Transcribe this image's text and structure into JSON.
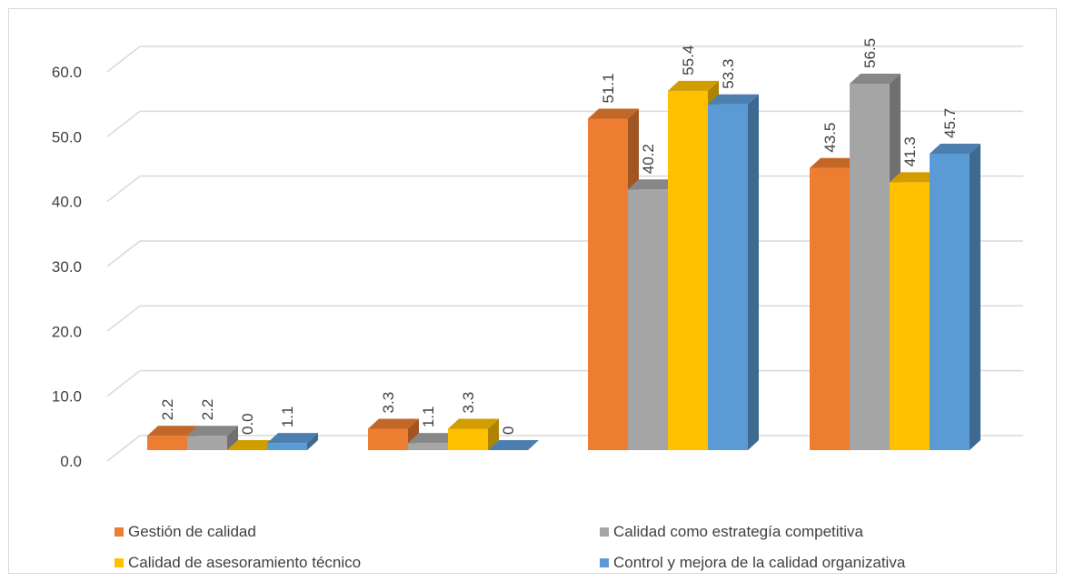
{
  "chart_data": {
    "type": "bar",
    "categories": [
      "",
      "",
      "",
      ""
    ],
    "ylim": [
      0,
      60
    ],
    "yticks": [
      "0.0",
      "10.0",
      "20.0",
      "30.0",
      "40.0",
      "50.0",
      "60.0"
    ],
    "grid": true,
    "legend_position": "bottom",
    "series": [
      {
        "name": "Gestión de calidad",
        "color": "#ED7D31",
        "values": [
          2.2,
          3.3,
          51.1,
          43.5
        ],
        "labels": [
          "2.2",
          "3.3",
          "51.1",
          "43.5"
        ]
      },
      {
        "name": "Calidad como estrategía competitiva",
        "color": "#A5A5A5",
        "values": [
          2.2,
          1.1,
          40.2,
          56.5
        ],
        "labels": [
          "2.2",
          "1.1",
          "40.2",
          "56.5"
        ]
      },
      {
        "name": "Calidad de asesoramiento técnico",
        "color": "#FFC000",
        "values": [
          0.0,
          3.3,
          55.4,
          41.3
        ],
        "labels": [
          "0.0",
          "3.3",
          "55.4",
          "41.3"
        ]
      },
      {
        "name": "Control y mejora de la calidad organizativa",
        "color": "#5B9BD5",
        "values": [
          1.1,
          0,
          53.3,
          45.7
        ],
        "labels": [
          "1.1",
          "0",
          "53.3",
          "45.7"
        ]
      }
    ]
  }
}
